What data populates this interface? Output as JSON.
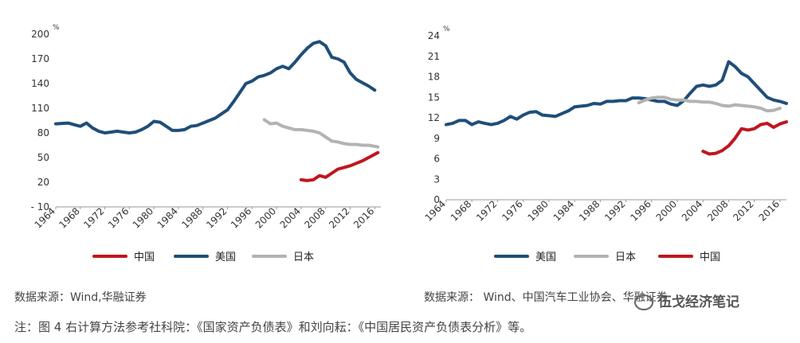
{
  "chart_data": [
    {
      "type": "line",
      "unit_label": "%",
      "ylim": [
        -10,
        200
      ],
      "yticks": [
        "200",
        "170",
        "140",
        "110",
        "80",
        "50",
        "20",
        "- 10"
      ],
      "ytick_values": [
        200,
        170,
        140,
        110,
        80,
        50,
        20,
        -10
      ],
      "xlim": [
        1964,
        2017
      ],
      "xticks": [
        "1964",
        "1968",
        "1972",
        "1976",
        "1980",
        "1984",
        "1988",
        "1992",
        "1996",
        "2000",
        "2004",
        "2008",
        "2012",
        "2016"
      ],
      "legend": [
        "中国",
        "美国",
        "日本"
      ],
      "series": [
        {
          "name": "中国",
          "color": "#c0161f",
          "x": [
            2004,
            2005,
            2006,
            2007,
            2008,
            2009,
            2010,
            2011,
            2012,
            2013,
            2014,
            2015,
            2016.5
          ],
          "y": [
            23,
            22,
            23,
            28,
            26,
            31,
            36,
            38,
            40,
            43,
            46,
            50,
            56
          ]
        },
        {
          "name": "美国",
          "color": "#1f4e79",
          "x": [
            1964,
            1966,
            1967,
            1968,
            1969,
            1970,
            1971,
            1972,
            1973,
            1974,
            1975,
            1976,
            1977,
            1978,
            1979,
            1980,
            1981,
            1982,
            1983,
            1984,
            1985,
            1986,
            1987,
            1988,
            1989,
            1990,
            1991,
            1992,
            1993,
            1994,
            1995,
            1996,
            1997,
            1998,
            1999,
            2000,
            2001,
            2002,
            2003,
            2004,
            2005,
            2006,
            2007,
            2008,
            2009,
            2010,
            2011,
            2012,
            2013,
            2014,
            2015,
            2016
          ],
          "y": [
            91,
            92,
            90,
            88,
            92,
            86,
            82,
            80,
            81,
            82,
            81,
            80,
            81,
            84,
            88,
            94,
            93,
            88,
            83,
            83,
            84,
            88,
            89,
            92,
            95,
            98,
            103,
            108,
            118,
            129,
            140,
            143,
            148,
            150,
            153,
            158,
            161,
            158,
            166,
            175,
            183,
            189,
            191,
            186,
            172,
            170,
            166,
            153,
            145,
            141,
            137,
            132
          ]
        },
        {
          "name": "日本",
          "color": "#b3b3b3",
          "x": [
            1998,
            1999,
            2000,
            2001,
            2002,
            2003,
            2004,
            2005,
            2006,
            2007,
            2008,
            2009,
            2010,
            2011,
            2012,
            2013,
            2014,
            2015,
            2016.5
          ],
          "y": [
            96,
            91,
            92,
            88,
            86,
            84,
            84,
            83,
            82,
            80,
            75,
            70,
            69,
            67,
            66,
            66,
            65,
            65,
            63
          ]
        }
      ]
    },
    {
      "type": "line",
      "unit_label": "%",
      "ylim": [
        0,
        24
      ],
      "yticks": [
        "24",
        "21",
        "18",
        "15",
        "12",
        "9",
        "6",
        "3",
        "0"
      ],
      "ytick_values": [
        24,
        21,
        18,
        15,
        12,
        9,
        6,
        3,
        0
      ],
      "xlim": [
        1964,
        2017
      ],
      "xticks": [
        "1964",
        "1968",
        "1972",
        "1976",
        "1980",
        "1984",
        "1988",
        "1992",
        "1996",
        "2000",
        "2004",
        "2008",
        "2012",
        "2016"
      ],
      "legend": [
        "美国",
        "日本",
        "中国"
      ],
      "series": [
        {
          "name": "美国",
          "color": "#1f4e79",
          "x": [
            1964,
            1965,
            1966,
            1967,
            1968,
            1969,
            1970,
            1971,
            1972,
            1973,
            1974,
            1975,
            1976,
            1977,
            1978,
            1979,
            1980,
            1981,
            1982,
            1983,
            1984,
            1985,
            1986,
            1987,
            1988,
            1989,
            1990,
            1991,
            1992,
            1993,
            1994,
            1995,
            1996,
            1997,
            1998,
            1999,
            2000,
            2001,
            2002,
            2003,
            2004,
            2005,
            2006,
            2007,
            2008,
            2009,
            2010,
            2011,
            2012,
            2013,
            2014,
            2015,
            2016,
            2017
          ],
          "y": [
            11.0,
            11.2,
            11.6,
            11.6,
            11.0,
            11.4,
            11.2,
            11.0,
            11.2,
            11.6,
            12.2,
            11.8,
            12.4,
            12.8,
            12.9,
            12.4,
            12.3,
            12.2,
            12.6,
            13.0,
            13.6,
            13.7,
            13.8,
            14.1,
            14.0,
            14.4,
            14.4,
            14.5,
            14.5,
            14.9,
            14.9,
            14.8,
            14.6,
            14.4,
            14.4,
            14.0,
            13.8,
            14.5,
            15.6,
            16.6,
            16.8,
            16.6,
            16.8,
            17.5,
            20.2,
            19.5,
            18.5,
            18.0,
            17.0,
            16.0,
            15.0,
            14.6,
            14.4,
            14.1
          ]
        },
        {
          "name": "日本",
          "color": "#b3b3b3",
          "x": [
            1994,
            1995,
            1996,
            1997,
            1998,
            1999,
            2000,
            2001,
            2002,
            2003,
            2004,
            2005,
            2006,
            2007,
            2008,
            2009,
            2010,
            2011,
            2012,
            2013,
            2014,
            2015,
            2016
          ],
          "y": [
            14.2,
            14.6,
            14.9,
            15.0,
            15.0,
            14.7,
            14.6,
            14.6,
            14.4,
            14.4,
            14.3,
            14.3,
            14.1,
            13.8,
            13.7,
            13.9,
            13.8,
            13.7,
            13.6,
            13.4,
            13.0,
            13.1,
            13.4
          ]
        },
        {
          "name": "中国",
          "color": "#c0161f",
          "x": [
            2004,
            2005,
            2006,
            2007,
            2008,
            2009,
            2010,
            2011,
            2012,
            2013,
            2014,
            2015,
            2016,
            2017
          ],
          "y": [
            7.1,
            6.7,
            6.8,
            7.2,
            7.9,
            9.0,
            10.4,
            10.2,
            10.4,
            11.0,
            11.2,
            10.6,
            11.1,
            11.4
          ]
        }
      ]
    }
  ],
  "sources": {
    "left": "数据来源：Wind,华融证券",
    "right": "数据来源： Wind、中国汽车工业协会、华融证券"
  },
  "note": "注：图 4 右计算方法参考社科院：《国家资产负债表》和刘向耘：《中国居民资产负债表分析》等。",
  "watermark": "伍戈经济笔记"
}
